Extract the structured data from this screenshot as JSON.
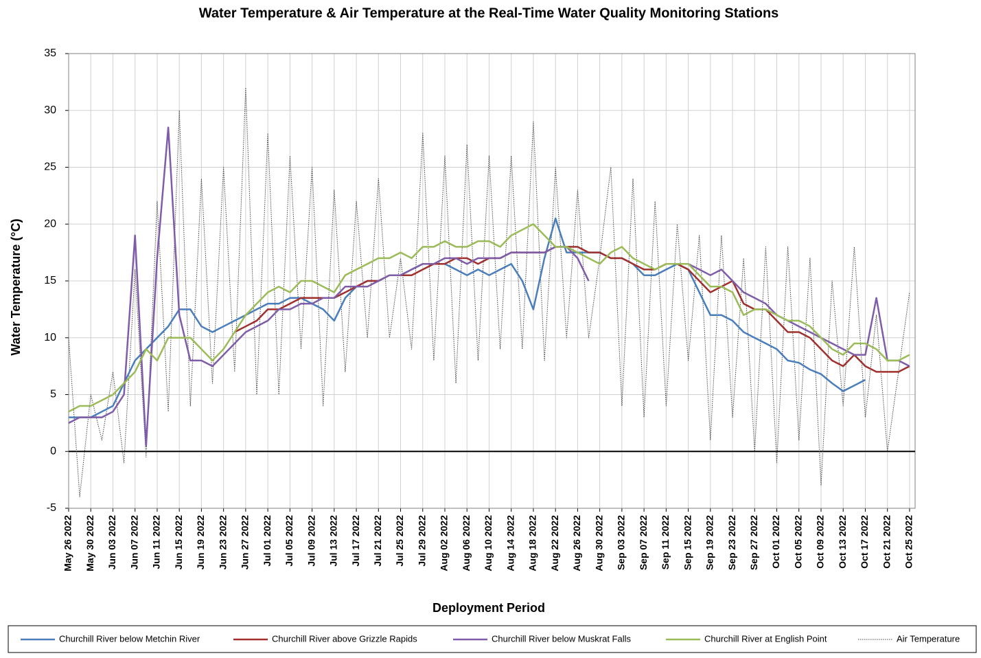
{
  "chart_data": {
    "type": "line",
    "title": "Water Temperature  & Air Temperature at the Real-Time Water Quality Monitoring Stations",
    "x_label": "Deployment Period",
    "y_label": "Water Temperature (°C)",
    "xlim": [
      "May 26 2022",
      "Oct 26 2022"
    ],
    "ylim": [
      -5,
      35
    ],
    "yticks": [
      -5,
      0,
      5,
      10,
      15,
      20,
      25,
      30,
      35
    ],
    "xticks": [
      "May 26 2022",
      "May 30 2022",
      "Jun 03 2022",
      "Jun 07 2022",
      "Jun 11 2022",
      "Jun 15 2022",
      "Jun 19 2022",
      "Jun 23 2022",
      "Jun 27 2022",
      "Jul 01 2022",
      "Jul 05 2022",
      "Jul 09 2022",
      "Jul 13 2022",
      "Jul 17 2022",
      "Jul 21 2022",
      "Jul 25 2022",
      "Jul 29 2022",
      "Aug 02 2022",
      "Aug 06 2022",
      "Aug 10 2022",
      "Aug 14 2022",
      "Aug 18 2022",
      "Aug 22 2022",
      "Aug 26 2022",
      "Aug 30 2022",
      "Sep 03 2022",
      "Sep 07 2022",
      "Sep 11 2022",
      "Sep 15 2022",
      "Sep 19 2022",
      "Sep 23 2022",
      "Sep 27 2022",
      "Oct 01 2022",
      "Oct 05 2022",
      "Oct 09 2022",
      "Oct 13 2022",
      "Oct 17 2022",
      "Oct 21 2022",
      "Oct 25 2022"
    ],
    "grid": true,
    "x": [
      "May 26 2022",
      "May 28 2022",
      "May 30 2022",
      "Jun 01 2022",
      "Jun 03 2022",
      "Jun 05 2022",
      "Jun 07 2022",
      "Jun 09 2022",
      "Jun 11 2022",
      "Jun 13 2022",
      "Jun 15 2022",
      "Jun 17 2022",
      "Jun 19 2022",
      "Jun 21 2022",
      "Jun 23 2022",
      "Jun 25 2022",
      "Jun 27 2022",
      "Jun 29 2022",
      "Jul 01 2022",
      "Jul 03 2022",
      "Jul 05 2022",
      "Jul 07 2022",
      "Jul 09 2022",
      "Jul 11 2022",
      "Jul 13 2022",
      "Jul 15 2022",
      "Jul 17 2022",
      "Jul 19 2022",
      "Jul 21 2022",
      "Jul 23 2022",
      "Jul 25 2022",
      "Jul 27 2022",
      "Jul 29 2022",
      "Jul 31 2022",
      "Aug 02 2022",
      "Aug 04 2022",
      "Aug 06 2022",
      "Aug 08 2022",
      "Aug 10 2022",
      "Aug 12 2022",
      "Aug 14 2022",
      "Aug 16 2022",
      "Aug 18 2022",
      "Aug 20 2022",
      "Aug 22 2022",
      "Aug 24 2022",
      "Aug 26 2022",
      "Aug 28 2022",
      "Aug 30 2022",
      "Sep 01 2022",
      "Sep 03 2022",
      "Sep 05 2022",
      "Sep 07 2022",
      "Sep 09 2022",
      "Sep 11 2022",
      "Sep 13 2022",
      "Sep 15 2022",
      "Sep 17 2022",
      "Sep 19 2022",
      "Sep 21 2022",
      "Sep 23 2022",
      "Sep 25 2022",
      "Sep 27 2022",
      "Sep 29 2022",
      "Oct 01 2022",
      "Oct 03 2022",
      "Oct 05 2022",
      "Oct 07 2022",
      "Oct 09 2022",
      "Oct 11 2022",
      "Oct 13 2022",
      "Oct 15 2022",
      "Oct 17 2022",
      "Oct 19 2022",
      "Oct 21 2022",
      "Oct 23 2022",
      "Oct 25 2022"
    ],
    "series": [
      {
        "name": "Churchill River below Metchin River",
        "color": "#4a7ebb",
        "style": "solid",
        "values": [
          3,
          3,
          3,
          3.5,
          4,
          6,
          8,
          9,
          10,
          11,
          12.5,
          12.5,
          11,
          10.5,
          11,
          11.5,
          12,
          12.5,
          13,
          13,
          13.5,
          13.5,
          13,
          12.5,
          11.5,
          13.5,
          14.5,
          15,
          15,
          15.5,
          15.5,
          16,
          16.5,
          16.5,
          16.5,
          16,
          15.5,
          16,
          15.5,
          16,
          16.5,
          15,
          12.5,
          17,
          20.5,
          17.5,
          17.5,
          17.5,
          17.5,
          17,
          17,
          16.5,
          15.5,
          15.5,
          16,
          16.5,
          16,
          14,
          12,
          12,
          11.5,
          10.5,
          10,
          9.5,
          9,
          8,
          7.8,
          7.2,
          6.8,
          6,
          5.3,
          5.8,
          6.3,
          null,
          null,
          null,
          null
        ]
      },
      {
        "name": "Churchill River above Grizzle Rapids",
        "color": "#a0302d",
        "style": "solid",
        "values": [
          null,
          null,
          null,
          null,
          null,
          null,
          null,
          null,
          null,
          null,
          null,
          null,
          null,
          null,
          null,
          10.5,
          11,
          11.5,
          12.5,
          12.5,
          13,
          13.5,
          13.5,
          13.5,
          13.5,
          14,
          14.5,
          15,
          15,
          15.5,
          15.5,
          15.5,
          16,
          16.5,
          16.5,
          17,
          17,
          16.5,
          17,
          17,
          17.5,
          17.5,
          17.5,
          17.5,
          18,
          18,
          18,
          17.5,
          17.5,
          17,
          17,
          16.5,
          16,
          16,
          16.5,
          16.5,
          16,
          15,
          14,
          14.5,
          15,
          13,
          12.5,
          12.5,
          11.5,
          10.5,
          10.5,
          10,
          9,
          8,
          7.5,
          8.5,
          7.5,
          7,
          7,
          7,
          7.5
        ]
      },
      {
        "name": "Churchill River below Muskrat Falls",
        "color": "#7f5ca8",
        "style": "solid",
        "values": [
          2.5,
          3,
          3,
          3,
          3.5,
          5,
          19,
          0.5,
          17,
          28.5,
          12,
          8,
          8,
          7.5,
          8.5,
          9.5,
          10.5,
          11,
          11.5,
          12.5,
          12.5,
          13,
          13,
          13.5,
          13.5,
          14.5,
          14.5,
          14.5,
          15,
          15.5,
          15.5,
          16,
          16.5,
          16.5,
          17,
          17,
          16.5,
          17,
          17,
          17,
          17.5,
          17.5,
          17.5,
          17.5,
          18,
          18,
          17,
          15,
          null,
          null,
          null,
          null,
          null,
          null,
          null,
          16.5,
          16.5,
          16,
          15.5,
          16,
          15,
          14,
          13.5,
          13,
          12,
          11.5,
          11,
          10.5,
          10,
          9.5,
          9,
          8.5,
          8.5,
          13.5,
          8,
          8,
          7.5
        ]
      },
      {
        "name": "Churchill River at English Point",
        "color": "#9bbb59",
        "style": "solid",
        "values": [
          3.5,
          4,
          4,
          4.5,
          5,
          6,
          7,
          9,
          8,
          10,
          10,
          10,
          9,
          8,
          9,
          10.5,
          12,
          13,
          14,
          14.5,
          14,
          15,
          15,
          14.5,
          14,
          15.5,
          16,
          16.5,
          17,
          17,
          17.5,
          17,
          18,
          18,
          18.5,
          18,
          18,
          18.5,
          18.5,
          18,
          19,
          19.5,
          20,
          19,
          18,
          18,
          17.5,
          17,
          16.5,
          17.5,
          18,
          17,
          16.5,
          16,
          16.5,
          16.5,
          16.5,
          15.5,
          14.5,
          14.5,
          14,
          12,
          12.5,
          12.5,
          12,
          11.5,
          11.5,
          11,
          10,
          9,
          8.5,
          9.5,
          9.5,
          9,
          8,
          8,
          8.5
        ]
      },
      {
        "name": "Air Temperature",
        "color": "#444444",
        "style": "dotted",
        "values": [
          10,
          -4,
          5,
          1,
          7,
          -1,
          16,
          -0.5,
          22,
          3.5,
          30,
          4,
          24,
          6,
          25,
          7,
          32,
          5,
          28,
          5,
          26,
          9,
          25,
          4,
          23,
          7,
          22,
          10,
          24,
          10,
          17,
          9,
          28,
          8,
          26,
          6,
          27,
          8,
          26,
          9,
          26,
          9,
          29,
          8,
          25,
          10,
          23,
          10,
          17,
          25,
          4,
          24,
          3,
          22,
          4,
          20,
          8,
          19,
          1,
          19,
          3,
          17,
          0,
          18,
          -1,
          18,
          1,
          17,
          -3,
          15,
          4,
          18,
          3,
          12,
          0,
          7,
          14
        ]
      }
    ]
  }
}
